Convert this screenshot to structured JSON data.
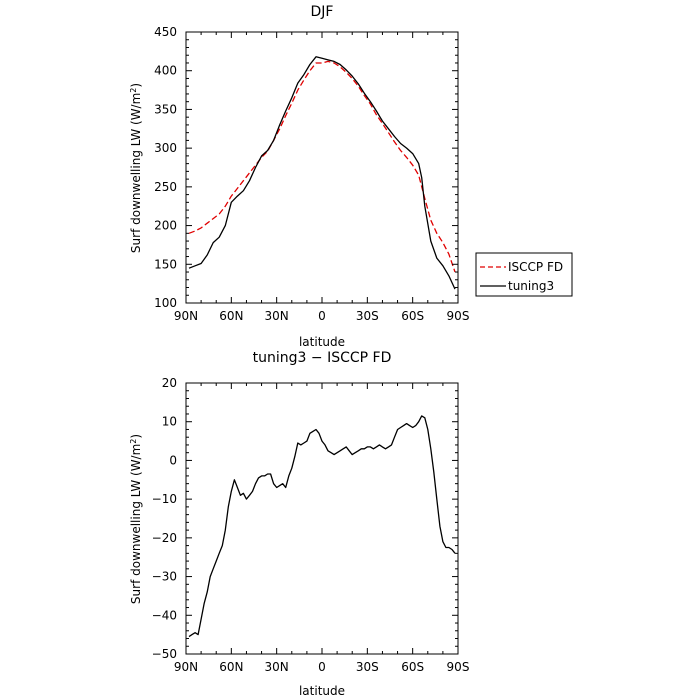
{
  "chart_data": [
    {
      "type": "line",
      "title": "DJF",
      "xlabel": "latitude",
      "ylabel": "Surf downwelling LW (W/m²)",
      "ylabel_main": "Surf downwelling LW (W/m",
      "ylabel_sup": "2",
      "ylabel_end": ")",
      "xlim": [
        90,
        -90
      ],
      "ylim": [
        100,
        450
      ],
      "x_ticks": [
        90,
        60,
        30,
        0,
        -30,
        -60,
        -90
      ],
      "x_tick_labels": [
        "90N",
        "60N",
        "30N",
        "0",
        "30S",
        "60S",
        "90S"
      ],
      "y_ticks": [
        100,
        150,
        200,
        250,
        300,
        350,
        400,
        450
      ],
      "y_tick_labels": [
        "100",
        "150",
        "200",
        "250",
        "300",
        "350",
        "400",
        "450"
      ],
      "legend": {
        "placement": "right",
        "entries": [
          "ISCCP FD",
          "tuning3"
        ]
      },
      "series": [
        {
          "name": "ISCCP FD",
          "color": "#e00000",
          "dash": "dashed",
          "x": [
            88,
            84,
            80,
            76,
            72,
            68,
            64,
            60,
            56,
            52,
            48,
            44,
            40,
            36,
            32,
            28,
            24,
            20,
            16,
            12,
            8,
            4,
            0,
            -4,
            -8,
            -12,
            -16,
            -20,
            -24,
            -28,
            -32,
            -36,
            -40,
            -44,
            -48,
            -52,
            -56,
            -60,
            -64,
            -68,
            -72,
            -76,
            -80,
            -84,
            -88
          ],
          "values": [
            190,
            193,
            197,
            203,
            209,
            215,
            225,
            238,
            248,
            258,
            268,
            278,
            288,
            296,
            310,
            325,
            342,
            358,
            375,
            388,
            400,
            410,
            410,
            412,
            410,
            405,
            398,
            390,
            380,
            368,
            357,
            343,
            332,
            320,
            308,
            297,
            288,
            278,
            265,
            235,
            207,
            190,
            178,
            163,
            140
          ]
        },
        {
          "name": "tuning3",
          "color": "#000000",
          "dash": "solid",
          "x": [
            88,
            84,
            80,
            76,
            72,
            68,
            64,
            60,
            56,
            52,
            48,
            44,
            40,
            36,
            32,
            28,
            24,
            20,
            16,
            12,
            8,
            4,
            0,
            -4,
            -8,
            -12,
            -16,
            -20,
            -24,
            -28,
            -32,
            -36,
            -40,
            -44,
            -48,
            -52,
            -56,
            -60,
            -64,
            -66,
            -68,
            -72,
            -76,
            -80,
            -84,
            -88
          ],
          "values": [
            145,
            148,
            151,
            162,
            178,
            185,
            200,
            230,
            238,
            245,
            258,
            275,
            290,
            297,
            310,
            330,
            348,
            365,
            384,
            395,
            408,
            418,
            416,
            414,
            412,
            408,
            401,
            393,
            383,
            371,
            360,
            348,
            335,
            325,
            315,
            306,
            300,
            293,
            280,
            262,
            225,
            180,
            158,
            148,
            135,
            118
          ]
        }
      ]
    },
    {
      "type": "line",
      "title": "tuning3 − ISCCP FD",
      "xlabel": "latitude",
      "ylabel": "Surf downwelling LW (W/m²)",
      "ylabel_main": "Surf downwelling LW (W/m",
      "ylabel_sup": "2",
      "ylabel_end": ")",
      "xlim": [
        90,
        -90
      ],
      "ylim": [
        -50,
        20
      ],
      "x_ticks": [
        90,
        60,
        30,
        0,
        -30,
        -60,
        -90
      ],
      "x_tick_labels": [
        "90N",
        "60N",
        "30N",
        "0",
        "30S",
        "60S",
        "90S"
      ],
      "y_ticks": [
        -50,
        -40,
        -30,
        -20,
        -10,
        0,
        10,
        20
      ],
      "y_tick_labels": [
        "−50",
        "−40",
        "−30",
        "−20",
        "−10",
        "0",
        "10",
        "20"
      ],
      "series": [
        {
          "name": "tuning3 − ISCCP FD",
          "color": "#000000",
          "dash": "solid",
          "x": [
            88,
            86,
            84,
            82,
            80,
            78,
            76,
            74,
            72,
            70,
            68,
            66,
            64,
            62,
            60,
            58,
            56,
            54,
            52,
            50,
            48,
            46,
            44,
            42,
            40,
            38,
            36,
            34,
            32,
            30,
            28,
            26,
            24,
            22,
            20,
            18,
            16,
            14,
            12,
            10,
            8,
            6,
            4,
            2,
            0,
            -2,
            -4,
            -6,
            -8,
            -10,
            -12,
            -14,
            -16,
            -18,
            -20,
            -22,
            -24,
            -26,
            -28,
            -30,
            -32,
            -34,
            -36,
            -38,
            -40,
            -42,
            -44,
            -46,
            -48,
            -50,
            -52,
            -54,
            -56,
            -58,
            -60,
            -62,
            -64,
            -66,
            -68,
            -70,
            -72,
            -74,
            -76,
            -78,
            -80,
            -82,
            -84,
            -86,
            -88
          ],
          "values": [
            -45.5,
            -45,
            -44.5,
            -45,
            -41,
            -37,
            -34,
            -30,
            -28,
            -26,
            -24,
            -22,
            -18,
            -12,
            -8,
            -5,
            -7,
            -9,
            -8.5,
            -10,
            -9,
            -8,
            -6,
            -4.5,
            -4,
            -4,
            -3.5,
            -3.5,
            -6,
            -7,
            -6.5,
            -6,
            -7,
            -4,
            -2,
            1,
            4.5,
            4,
            4.5,
            5,
            7,
            7.5,
            8,
            7,
            5,
            4,
            2.5,
            2,
            1.5,
            2,
            2.5,
            3,
            3.5,
            2.5,
            1.5,
            2,
            2.5,
            3,
            3,
            3.5,
            3.5,
            3,
            3.5,
            4,
            3.5,
            3,
            3.5,
            4,
            6,
            8,
            8.5,
            9,
            9.5,
            9,
            8.5,
            9,
            10,
            11.5,
            11,
            8,
            3,
            -3,
            -10,
            -17,
            -21,
            -22.5,
            -22.5,
            -23,
            -24
          ]
        }
      ]
    }
  ]
}
